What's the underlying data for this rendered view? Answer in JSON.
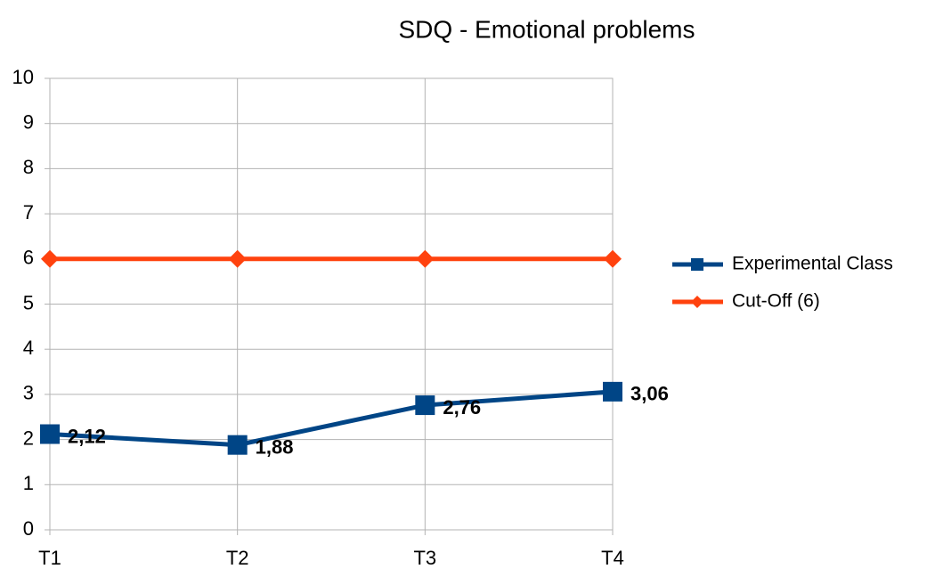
{
  "chart_data": {
    "type": "line",
    "title": "SDQ - Emotional problems",
    "categories": [
      "T1",
      "T2",
      "T3",
      "T4"
    ],
    "series": [
      {
        "name": "Experimental Class",
        "color": "#004586",
        "marker": "square",
        "values": [
          2.12,
          1.88,
          2.76,
          3.06
        ],
        "value_labels": [
          "2,12",
          "1,88",
          "2,76",
          "3,06"
        ]
      },
      {
        "name": "Cut-Off (6)",
        "color": "#ff420e",
        "marker": "diamond",
        "values": [
          6,
          6,
          6,
          6
        ]
      }
    ],
    "ylim": [
      0,
      10
    ],
    "yticks": [
      0,
      1,
      2,
      3,
      4,
      5,
      6,
      7,
      8,
      9,
      10
    ],
    "grid": true,
    "legend": "right"
  }
}
